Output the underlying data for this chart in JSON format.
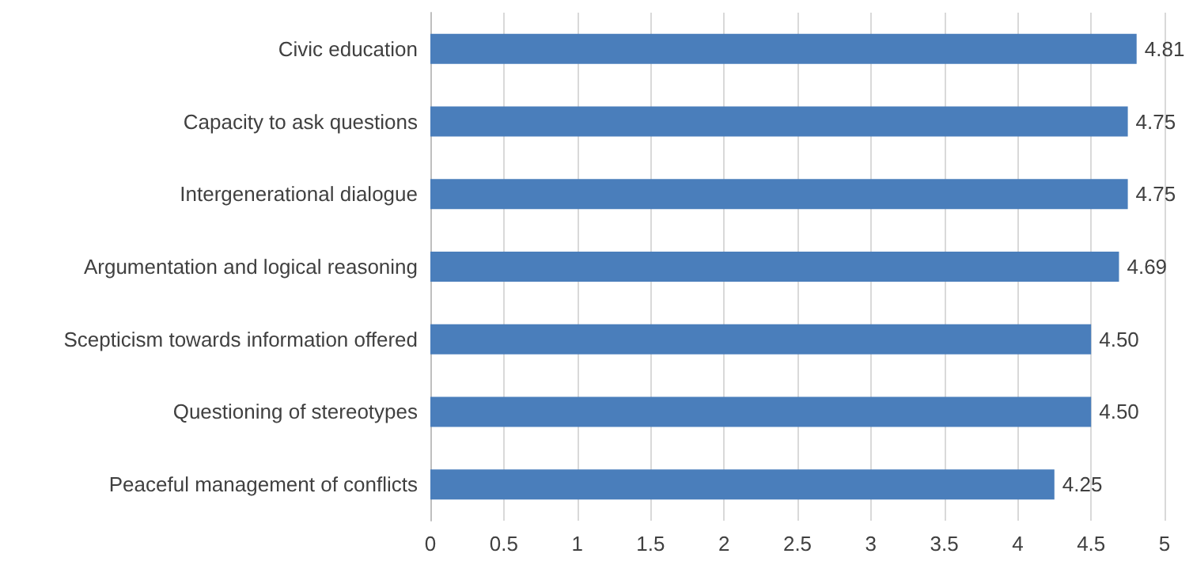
{
  "chart_data": {
    "type": "bar",
    "orientation": "horizontal",
    "categories": [
      "Civic education",
      "Capacity to ask questions",
      "Intergenerational dialogue",
      "Argumentation and logical reasoning",
      "Scepticism towards information offered",
      "Questioning of stereotypes",
      "Peaceful management of conflicts"
    ],
    "values": [
      4.81,
      4.75,
      4.75,
      4.69,
      4.5,
      4.5,
      4.25
    ],
    "value_labels": [
      "4.81",
      "4.75",
      "4.75",
      "4.69",
      "4.50",
      "4.50",
      "4.25"
    ],
    "color": "#4a7ebb",
    "xlim": [
      0,
      5
    ],
    "xticks": [
      0,
      0.5,
      1,
      1.5,
      2,
      2.5,
      3,
      3.5,
      4,
      4.5,
      5
    ],
    "grid": "x"
  }
}
